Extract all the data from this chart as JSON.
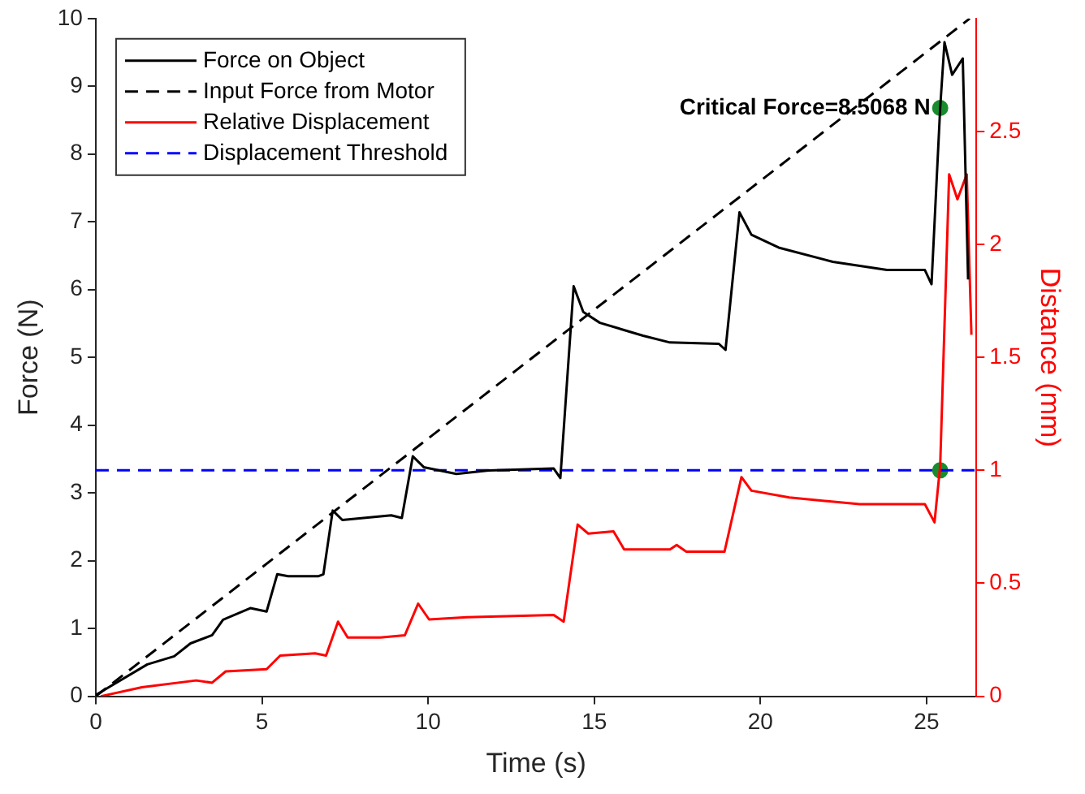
{
  "chart_data": {
    "type": "line",
    "xlabel": "Time (s)",
    "ylabel": "Force (N)",
    "y2label": "Distance (mm)",
    "xlim": [
      0,
      26.5
    ],
    "xticks": [
      0,
      5,
      10,
      15,
      20,
      25
    ],
    "ylim": [
      0,
      10
    ],
    "yticks": [
      0,
      1,
      2,
      3,
      4,
      5,
      6,
      7,
      8,
      9,
      10
    ],
    "y2lim": [
      0,
      3
    ],
    "y2ticks": [
      0,
      0.5,
      1,
      1.5,
      2,
      2.5
    ],
    "legend": "top left",
    "grid": false,
    "series": [
      {
        "name": "Force on Object",
        "color": "#000000",
        "line_style": "solid",
        "x": [
          0,
          1.55,
          2.36,
          2.85,
          3.5,
          3.83,
          4.65,
          5.14,
          5.46,
          5.79,
          6.69,
          6.85,
          7.13,
          7.42,
          8.89,
          9.21,
          9.54,
          9.87,
          10.85,
          11.82,
          13.78,
          13.98,
          14.38,
          14.67,
          15.17,
          16.47,
          17.28,
          18.75,
          18.95,
          19.37,
          19.73,
          20.55,
          22.18,
          23.81,
          24.95,
          25.15,
          25.41,
          25.54,
          25.77,
          26.09,
          26.25
        ],
        "values": [
          0.02,
          0.47,
          0.59,
          0.78,
          0.9,
          1.13,
          1.3,
          1.25,
          1.8,
          1.77,
          1.77,
          1.8,
          2.74,
          2.6,
          2.67,
          2.63,
          3.54,
          3.38,
          3.28,
          3.33,
          3.36,
          3.22,
          6.05,
          5.67,
          5.51,
          5.32,
          5.22,
          5.2,
          5.11,
          7.14,
          6.81,
          6.62,
          6.41,
          6.29,
          6.29,
          6.08,
          8.68,
          9.65,
          9.17,
          9.41,
          6.15
        ]
      },
      {
        "name": "Input Force from Motor",
        "color": "#000000",
        "line_style": "dashed",
        "x": [
          0,
          26.3
        ],
        "values": [
          0,
          10
        ]
      },
      {
        "name": "Relative Displacement",
        "color": "#ff0000",
        "line_style": "solid",
        "axis": "y2",
        "x": [
          0.15,
          1.39,
          3.02,
          3.5,
          3.91,
          5.14,
          5.55,
          6.6,
          6.93,
          7.29,
          7.58,
          8.56,
          9.3,
          9.7,
          10.03,
          11.17,
          13.78,
          14.08,
          14.5,
          14.82,
          15.58,
          15.9,
          17.28,
          17.48,
          17.77,
          18.92,
          19.43,
          19.73,
          20.87,
          22.99,
          24.95,
          25.24,
          25.41,
          25.68,
          25.93,
          26.21,
          26.35
        ],
        "values": [
          0,
          0.04,
          0.07,
          0.06,
          0.11,
          0.12,
          0.18,
          0.19,
          0.18,
          0.33,
          0.26,
          0.26,
          0.27,
          0.41,
          0.34,
          0.35,
          0.36,
          0.33,
          0.76,
          0.72,
          0.73,
          0.65,
          0.65,
          0.67,
          0.64,
          0.64,
          0.97,
          0.91,
          0.88,
          0.85,
          0.85,
          0.77,
          1.02,
          2.31,
          2.2,
          2.31,
          1.6
        ]
      },
      {
        "name": "Displacement Threshold",
        "color": "#0000ff",
        "line_style": "dashed",
        "axis": "y2",
        "x": [
          0,
          26.5
        ],
        "values": [
          1,
          1
        ]
      },
      {
        "type": "scatter",
        "color": "#1a8c2e",
        "marker": "circle",
        "x": [
          25.41
        ],
        "values": [
          8.68
        ]
      },
      {
        "type": "scatter",
        "color": "#1a8c2e",
        "marker": "circle",
        "axis": "y2",
        "x": [
          25.41
        ],
        "values": [
          1
        ]
      }
    ],
    "annotations": [
      {
        "text": "Critical Force=8.5068 N",
        "x": 25.41,
        "y": 8.68
      }
    ]
  }
}
